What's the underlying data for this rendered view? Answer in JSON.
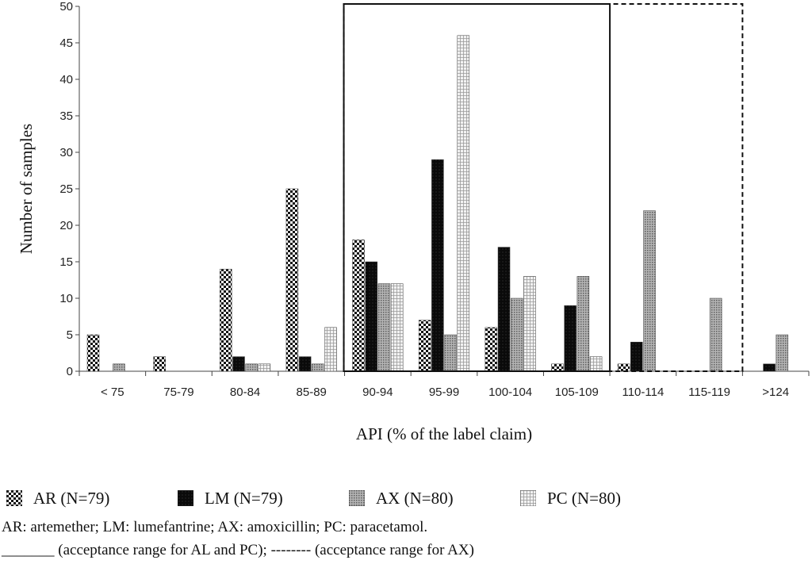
{
  "chart_data": {
    "type": "bar",
    "xlabel": "API (% of the label claim)",
    "ylabel": "Number of samples",
    "ylim": [
      0,
      50
    ],
    "yticks": [
      0,
      5,
      10,
      15,
      20,
      25,
      30,
      35,
      40,
      45,
      50
    ],
    "categories": [
      "< 75",
      "75-79",
      "80-84",
      "85-89",
      "90-94",
      "95-99",
      "100-104",
      "105-109",
      "110-114",
      "115-119",
      ">124"
    ],
    "series": [
      {
        "name": "AR (N=79)",
        "pattern": "checker",
        "values": [
          5,
          2,
          14,
          25,
          18,
          7,
          6,
          1,
          1,
          0,
          0
        ]
      },
      {
        "name": "LM (N=79)",
        "pattern": "solid-black",
        "values": [
          0,
          0,
          2,
          2,
          15,
          29,
          17,
          9,
          4,
          0,
          1
        ]
      },
      {
        "name": "AX (N=80)",
        "pattern": "dotted-gray",
        "values": [
          1,
          0,
          1,
          1,
          12,
          5,
          10,
          13,
          22,
          10,
          5
        ]
      },
      {
        "name": "PC (N=80)",
        "pattern": "grid-light",
        "values": [
          0,
          0,
          1,
          6,
          12,
          46,
          13,
          2,
          0,
          0,
          0
        ]
      }
    ],
    "grid": false,
    "legend_position": "bottom",
    "acceptance_ranges": [
      {
        "label": "AL and PC",
        "style": "solid",
        "from_category": "90-94",
        "to_category": "105-109"
      },
      {
        "label": "AX",
        "style": "dashed",
        "from_category": "90-94",
        "to_category": "115-119"
      }
    ]
  },
  "notes": {
    "abbreviations": "AR: artemether; LM: lumefantrine; AX: amoxicillin; PC: paracetamol.",
    "ranges": "_______ (acceptance range for AL and PC); -------- (acceptance range for AX)"
  }
}
